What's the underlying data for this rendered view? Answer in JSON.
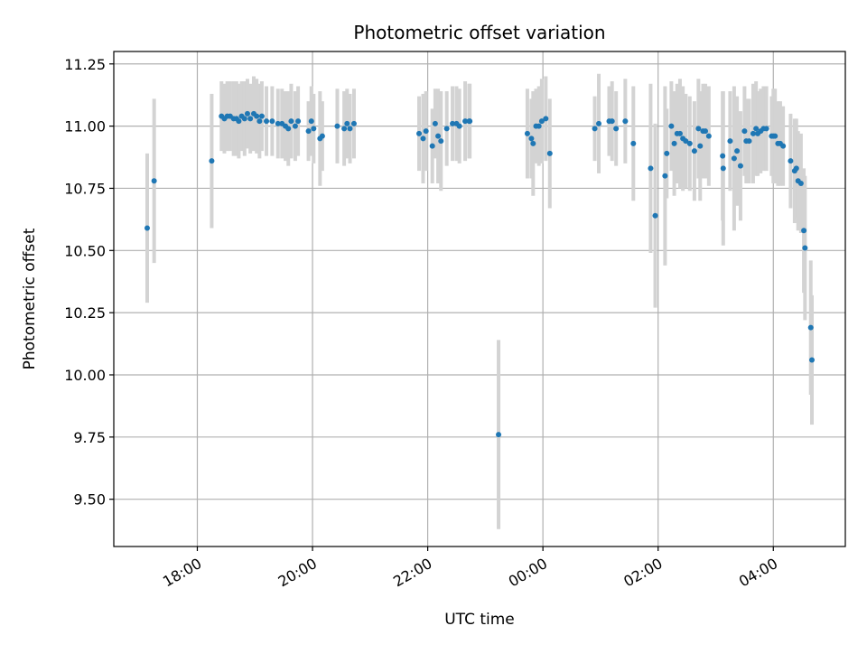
{
  "chart_data": {
    "type": "scatter",
    "title": "Photometric offset variation",
    "xlabel": "UTC time",
    "ylabel": "Photometric offset",
    "x_unit": "hours from 17:00 UTC",
    "x_ticks": [
      {
        "value": 1,
        "label": "18:00"
      },
      {
        "value": 3,
        "label": "20:00"
      },
      {
        "value": 5,
        "label": "22:00"
      },
      {
        "value": 7,
        "label": "00:00"
      },
      {
        "value": 9,
        "label": "02:00"
      },
      {
        "value": 11,
        "label": "04:00"
      }
    ],
    "y_ticks": [
      {
        "value": 9.5,
        "label": "9.50"
      },
      {
        "value": 9.75,
        "label": "9.75"
      },
      {
        "value": 10.0,
        "label": "10.00"
      },
      {
        "value": 10.25,
        "label": "10.25"
      },
      {
        "value": 10.5,
        "label": "10.50"
      },
      {
        "value": 10.75,
        "label": "10.75"
      },
      {
        "value": 11.0,
        "label": "11.00"
      },
      {
        "value": 11.25,
        "label": "11.25"
      }
    ],
    "xlim": [
      -0.45,
      12.25
    ],
    "ylim": [
      9.31,
      11.3
    ],
    "grid": true,
    "legend": "none",
    "colors": {
      "point": "#1f77b4",
      "errorbar": "#d3d3d3",
      "grid": "#b0b0b0"
    },
    "points": [
      [
        0.13,
        10.59,
        0.3
      ],
      [
        0.25,
        10.78,
        0.33
      ],
      [
        1.25,
        10.86,
        0.27
      ],
      [
        1.42,
        11.04,
        0.14
      ],
      [
        1.47,
        11.03,
        0.14
      ],
      [
        1.52,
        11.04,
        0.14
      ],
      [
        1.57,
        11.04,
        0.14
      ],
      [
        1.63,
        11.03,
        0.15
      ],
      [
        1.68,
        11.03,
        0.15
      ],
      [
        1.72,
        11.02,
        0.15
      ],
      [
        1.77,
        11.04,
        0.14
      ],
      [
        1.82,
        11.03,
        0.15
      ],
      [
        1.87,
        11.05,
        0.14
      ],
      [
        1.92,
        11.03,
        0.14
      ],
      [
        1.98,
        11.05,
        0.15
      ],
      [
        2.03,
        11.04,
        0.15
      ],
      [
        2.08,
        11.02,
        0.15
      ],
      [
        2.12,
        11.04,
        0.14
      ],
      [
        2.2,
        11.02,
        0.14
      ],
      [
        2.3,
        11.02,
        0.14
      ],
      [
        2.4,
        11.01,
        0.14
      ],
      [
        2.47,
        11.01,
        0.14
      ],
      [
        2.53,
        11.0,
        0.14
      ],
      [
        2.58,
        10.99,
        0.15
      ],
      [
        2.63,
        11.02,
        0.15
      ],
      [
        2.7,
        11.0,
        0.14
      ],
      [
        2.75,
        11.02,
        0.14
      ],
      [
        2.93,
        10.98,
        0.12
      ],
      [
        2.98,
        11.02,
        0.14
      ],
      [
        3.02,
        10.99,
        0.14
      ],
      [
        3.13,
        10.95,
        0.19
      ],
      [
        3.17,
        10.96,
        0.14
      ],
      [
        3.43,
        11.0,
        0.15
      ],
      [
        3.55,
        10.99,
        0.15
      ],
      [
        3.6,
        11.01,
        0.14
      ],
      [
        3.65,
        10.99,
        0.14
      ],
      [
        3.72,
        11.01,
        0.14
      ],
      [
        4.85,
        10.97,
        0.15
      ],
      [
        4.92,
        10.95,
        0.18
      ],
      [
        4.97,
        10.98,
        0.16
      ],
      [
        5.08,
        10.92,
        0.15
      ],
      [
        5.13,
        11.01,
        0.14
      ],
      [
        5.18,
        10.96,
        0.19
      ],
      [
        5.23,
        10.94,
        0.2
      ],
      [
        5.33,
        10.99,
        0.15
      ],
      [
        5.43,
        11.01,
        0.15
      ],
      [
        5.5,
        11.01,
        0.15
      ],
      [
        5.55,
        11.0,
        0.15
      ],
      [
        5.65,
        11.02,
        0.16
      ],
      [
        5.72,
        11.02,
        0.15
      ],
      [
        5.73,
        11.02,
        0.15
      ],
      [
        6.23,
        9.76,
        0.38
      ],
      [
        6.73,
        10.97,
        0.18
      ],
      [
        6.8,
        10.95,
        0.16
      ],
      [
        6.83,
        10.93,
        0.21
      ],
      [
        6.88,
        11.0,
        0.15
      ],
      [
        6.93,
        11.0,
        0.16
      ],
      [
        6.98,
        11.02,
        0.17
      ],
      [
        7.05,
        11.03,
        0.17
      ],
      [
        7.12,
        10.89,
        0.22
      ],
      [
        7.9,
        10.99,
        0.13
      ],
      [
        7.97,
        11.01,
        0.2
      ],
      [
        8.15,
        11.02,
        0.14
      ],
      [
        8.2,
        11.02,
        0.16
      ],
      [
        8.27,
        10.99,
        0.15
      ],
      [
        8.43,
        11.02,
        0.17
      ],
      [
        8.57,
        10.93,
        0.23
      ],
      [
        8.87,
        10.83,
        0.34
      ],
      [
        8.95,
        10.64,
        0.37
      ],
      [
        9.12,
        10.8,
        0.36
      ],
      [
        9.15,
        10.89,
        0.18
      ],
      [
        9.23,
        11.0,
        0.18
      ],
      [
        9.28,
        10.93,
        0.21
      ],
      [
        9.33,
        10.97,
        0.2
      ],
      [
        9.38,
        10.97,
        0.22
      ],
      [
        9.43,
        10.95,
        0.21
      ],
      [
        9.48,
        10.94,
        0.19
      ],
      [
        9.55,
        10.93,
        0.19
      ],
      [
        9.63,
        10.9,
        0.2
      ],
      [
        9.7,
        10.99,
        0.2
      ],
      [
        9.73,
        10.92,
        0.22
      ],
      [
        9.78,
        10.98,
        0.19
      ],
      [
        9.82,
        10.98,
        0.19
      ],
      [
        9.88,
        10.96,
        0.2
      ],
      [
        10.12,
        10.88,
        0.26
      ],
      [
        10.13,
        10.83,
        0.31
      ],
      [
        10.25,
        10.94,
        0.2
      ],
      [
        10.32,
        10.87,
        0.29
      ],
      [
        10.37,
        10.9,
        0.22
      ],
      [
        10.43,
        10.84,
        0.22
      ],
      [
        10.5,
        10.98,
        0.18
      ],
      [
        10.53,
        10.94,
        0.17
      ],
      [
        10.58,
        10.94,
        0.17
      ],
      [
        10.65,
        10.97,
        0.2
      ],
      [
        10.7,
        10.99,
        0.19
      ],
      [
        10.73,
        10.97,
        0.17
      ],
      [
        10.78,
        10.98,
        0.17
      ],
      [
        10.83,
        10.99,
        0.17
      ],
      [
        10.88,
        10.99,
        0.17
      ],
      [
        10.97,
        10.96,
        0.16
      ],
      [
        11.0,
        10.96,
        0.19
      ],
      [
        11.03,
        10.96,
        0.19
      ],
      [
        11.08,
        10.93,
        0.17
      ],
      [
        11.12,
        10.93,
        0.17
      ],
      [
        11.17,
        10.92,
        0.16
      ],
      [
        11.3,
        10.86,
        0.19
      ],
      [
        11.37,
        10.82,
        0.21
      ],
      [
        11.4,
        10.83,
        0.2
      ],
      [
        11.43,
        10.78,
        0.2
      ],
      [
        11.48,
        10.77,
        0.2
      ],
      [
        11.53,
        10.58,
        0.25
      ],
      [
        11.55,
        10.51,
        0.29
      ],
      [
        11.65,
        10.19,
        0.27
      ],
      [
        11.67,
        10.06,
        0.26
      ]
    ]
  }
}
